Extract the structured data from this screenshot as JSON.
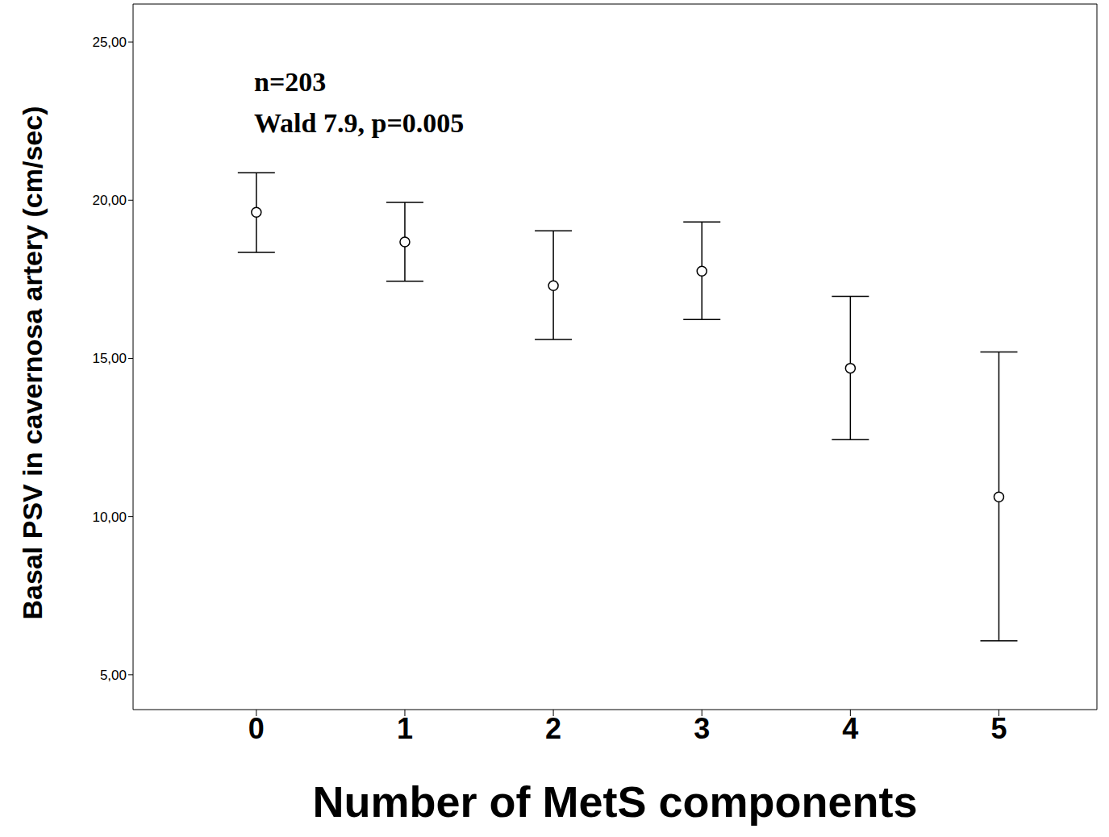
{
  "chart_data": {
    "type": "scatter",
    "x_label": "Number of MetS components",
    "y_label": "Basal PSV in cavernosa artery (cm/sec)",
    "annotations": [
      "n=203",
      "Wald 7.9, p=0.005"
    ],
    "x": [
      0,
      1,
      2,
      3,
      4,
      5
    ],
    "values": [
      19.62,
      18.68,
      17.3,
      17.76,
      14.69,
      10.62
    ],
    "ci_lower": [
      18.35,
      17.44,
      15.6,
      16.23,
      12.43,
      6.07
    ],
    "ci_upper": [
      20.87,
      19.93,
      19.03,
      19.31,
      16.96,
      15.2
    ],
    "color": "#000000",
    "marker": "circle",
    "xlim": [
      -0.83,
      5.66
    ],
    "xticks": [
      0,
      1,
      2,
      3,
      4,
      5
    ],
    "ylim": [
      3.9,
      26.2
    ],
    "yticks": [
      {
        "value": 5,
        "label": "5,00"
      },
      {
        "value": 10,
        "label": "10,00"
      },
      {
        "value": 15,
        "label": "15,00"
      },
      {
        "value": 20,
        "label": "20,00"
      },
      {
        "value": 25,
        "label": "25,00"
      }
    ],
    "grid": false
  }
}
